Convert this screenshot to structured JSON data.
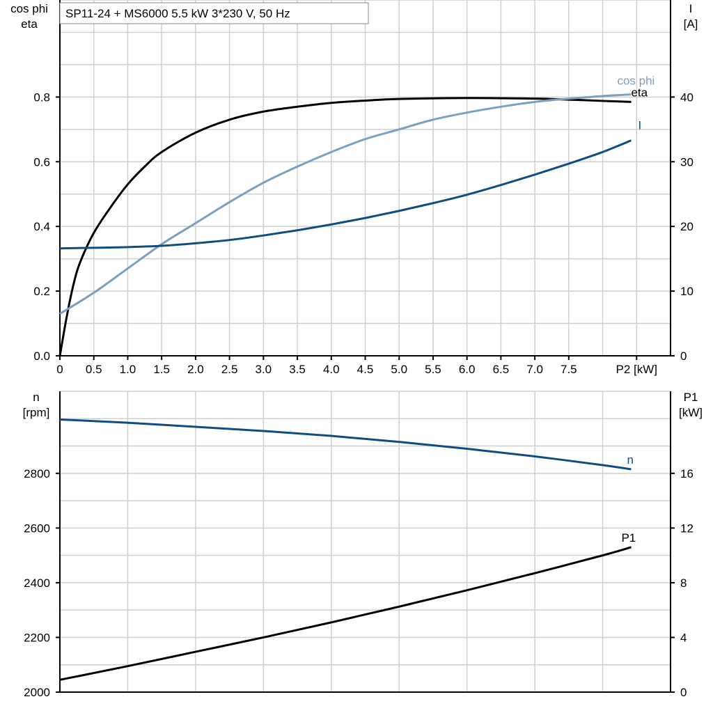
{
  "title": "SP11-24 + MS6000   5.5 kW   3*230 V, 50 Hz",
  "colors": {
    "eta": "#000000",
    "cos_phi": "#7a9fbf",
    "I": "#0f4c81",
    "n": "#0f4c81",
    "P1": "#000000",
    "grid": "#d0d0d0"
  },
  "chart_data": [
    {
      "type": "line",
      "xlabel": "P2 [kW]",
      "x_ticks": [
        "0",
        "0.5",
        "1.0",
        "1.5",
        "2.0",
        "2.5",
        "3.0",
        "3.5",
        "4.0",
        "4.5",
        "5.0",
        "5.5",
        "6.0",
        "6.5",
        "7.0",
        "7.5"
      ],
      "xlim": [
        0,
        9.0
      ],
      "ylabel_left": [
        "cos phi",
        "eta"
      ],
      "ylim_left": [
        0,
        1.1
      ],
      "y_ticks_left": [
        "0.0",
        "0.2",
        "0.4",
        "0.6",
        "0.8"
      ],
      "ylabel_right": [
        "I",
        "[A]"
      ],
      "ylim_right": [
        0,
        55
      ],
      "y_ticks_right": [
        "0",
        "10",
        "20",
        "30",
        "40"
      ],
      "grid": true,
      "series": [
        {
          "name": "eta",
          "axis": "left",
          "x": [
            0,
            0.1,
            0.2,
            0.3,
            0.5,
            0.75,
            1.0,
            1.25,
            1.5,
            2.0,
            2.5,
            3.0,
            3.5,
            4.0,
            4.5,
            5.0,
            6.0,
            7.0,
            7.5,
            8.0,
            8.42
          ],
          "y": [
            0,
            0.12,
            0.22,
            0.29,
            0.38,
            0.46,
            0.53,
            0.585,
            0.63,
            0.69,
            0.73,
            0.755,
            0.77,
            0.782,
            0.789,
            0.794,
            0.797,
            0.795,
            0.792,
            0.788,
            0.785
          ]
        },
        {
          "name": "cos phi",
          "axis": "left",
          "x": [
            0,
            0.5,
            1,
            1.5,
            2,
            2.5,
            3,
            3.5,
            4,
            4.5,
            5,
            5.5,
            6,
            6.5,
            7,
            7.5,
            8,
            8.42
          ],
          "y": [
            0.13,
            0.195,
            0.27,
            0.345,
            0.41,
            0.475,
            0.535,
            0.585,
            0.63,
            0.67,
            0.7,
            0.73,
            0.752,
            0.77,
            0.785,
            0.795,
            0.803,
            0.808
          ]
        },
        {
          "name": "I",
          "axis": "right",
          "x": [
            0,
            0.5,
            1,
            1.5,
            2,
            2.5,
            3,
            3.5,
            4,
            4.5,
            5,
            5.5,
            6,
            6.5,
            7,
            7.5,
            8,
            8.42
          ],
          "y": [
            16.6,
            16.7,
            16.8,
            17.0,
            17.4,
            17.9,
            18.6,
            19.4,
            20.3,
            21.3,
            22.4,
            23.6,
            24.9,
            26.4,
            28.0,
            29.7,
            31.5,
            33.3
          ]
        }
      ]
    },
    {
      "type": "line",
      "xlim": [
        0,
        9.0
      ],
      "ylabel_left": [
        "n",
        "[rpm]"
      ],
      "ylim_left": [
        2000,
        3100
      ],
      "y_ticks_left": [
        "2000",
        "2200",
        "2400",
        "2600",
        "2800"
      ],
      "ylabel_right": [
        "P1",
        "[kW]"
      ],
      "ylim_right": [
        0,
        22
      ],
      "y_ticks_right": [
        "0",
        "4",
        "8",
        "12",
        "16"
      ],
      "grid": true,
      "series": [
        {
          "name": "n",
          "axis": "left",
          "x": [
            0,
            1,
            2,
            3,
            4,
            5,
            6,
            7,
            8,
            8.42
          ],
          "y": [
            2997,
            2985,
            2970,
            2955,
            2937,
            2915,
            2890,
            2862,
            2830,
            2815
          ]
        },
        {
          "name": "P1",
          "axis": "right",
          "x": [
            0,
            1,
            2,
            3,
            4,
            5,
            6,
            7,
            8,
            8.42
          ],
          "y": [
            0.9,
            1.9,
            2.95,
            4.0,
            5.1,
            6.25,
            7.45,
            8.7,
            10.0,
            10.6
          ]
        }
      ]
    }
  ]
}
